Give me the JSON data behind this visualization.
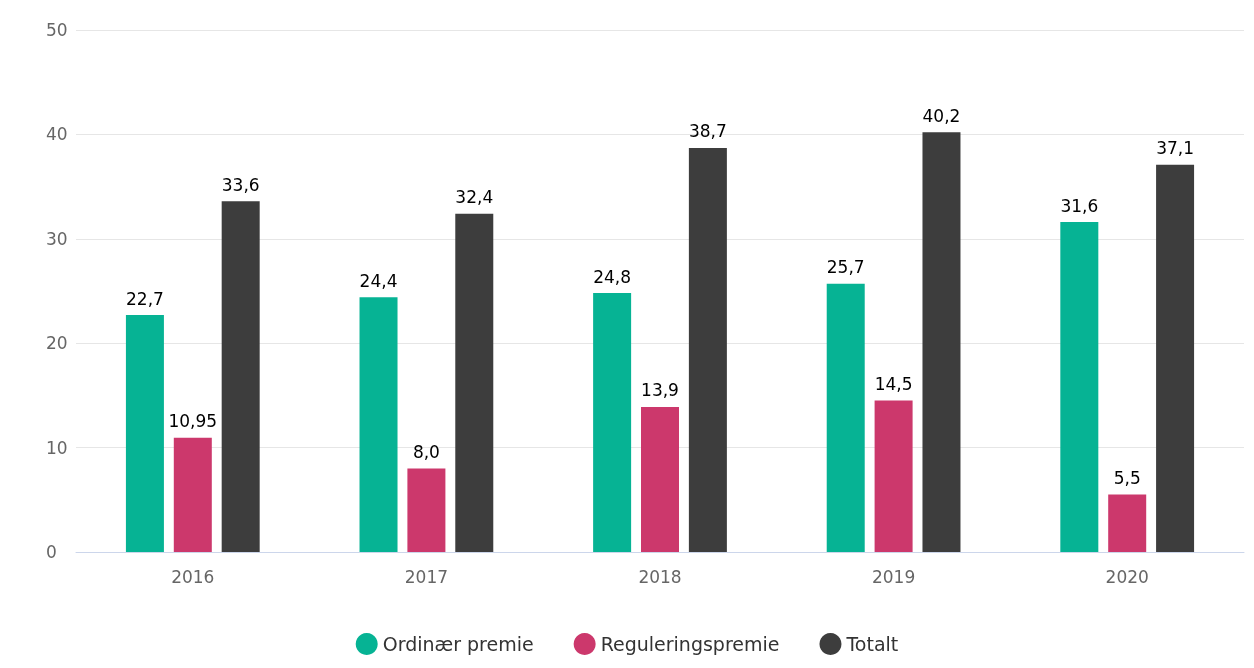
{
  "chart_data": {
    "type": "bar",
    "categories": [
      "2016",
      "2017",
      "2018",
      "2019",
      "2020"
    ],
    "series": [
      {
        "name": "Ordinær premie",
        "color": "#06b394",
        "values": [
          22.7,
          24.4,
          24.8,
          25.7,
          31.6
        ],
        "value_labels": [
          "22,7",
          "24,4",
          "24,8",
          "25,7",
          "31,6"
        ]
      },
      {
        "name": "Reguleringspremie",
        "color": "#cc386c",
        "values": [
          10.95,
          8.0,
          13.9,
          14.5,
          5.5
        ],
        "value_labels": [
          "10,95",
          "8,0",
          "13,9",
          "14,5",
          "5,5"
        ]
      },
      {
        "name": "Totalt",
        "color": "#3d3d3d",
        "values": [
          33.6,
          32.4,
          38.7,
          40.2,
          37.1
        ],
        "value_labels": [
          "33,6",
          "32,4",
          "38,7",
          "40,2",
          "37,1"
        ]
      }
    ],
    "ylim": [
      0,
      50
    ],
    "yticks": [
      0,
      10,
      20,
      30,
      40,
      50
    ],
    "grid": "y",
    "legend": "bottom"
  }
}
